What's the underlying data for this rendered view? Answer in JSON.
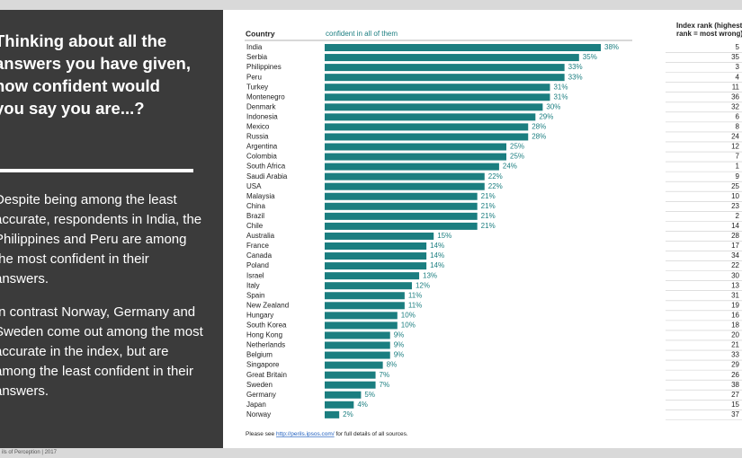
{
  "panel": {
    "question": "Thinking about all the answers you have given, how confident would you say you are...?",
    "paragraphs": [
      "Despite being among the least accurate, respondents in India, the Philippines and Peru are among the most confident in their answers.",
      "In contrast Norway, Germany and Sweden come out among the most accurate in the index, but are among the least confident in their answers."
    ]
  },
  "footer": "ils of Perception | 2017",
  "chart_data": {
    "type": "bar",
    "orientation": "horizontal",
    "category_header": "Country",
    "series_name": "confident in all of them",
    "color": "#1b7e80",
    "categories": [
      "India",
      "Serbia",
      "Philippines",
      "Peru",
      "Turkey",
      "Montenegro",
      "Denmark",
      "Indonesia",
      "Mexico",
      "Russia",
      "Argentina",
      "Colombia",
      "South Africa",
      "Saudi Arabia",
      "USA",
      "Malaysia",
      "China",
      "Brazil",
      "Chile",
      "Australia",
      "France",
      "Canada",
      "Poland",
      "Israel",
      "Italy",
      "Spain",
      "New Zealand",
      "Hungary",
      "South Korea",
      "Hong Kong",
      "Netherlands",
      "Belgium",
      "Singapore",
      "Great Britain",
      "Sweden",
      "Germany",
      "Japan",
      "Norway"
    ],
    "values": [
      38,
      35,
      33,
      33,
      31,
      31,
      30,
      29,
      28,
      28,
      25,
      25,
      24,
      22,
      22,
      21,
      21,
      21,
      21,
      15,
      14,
      14,
      14,
      13,
      12,
      11,
      11,
      10,
      10,
      9,
      9,
      9,
      8,
      7,
      7,
      5,
      4,
      2
    ],
    "value_labels": [
      "38%",
      "35%",
      "33%",
      "33%",
      "31%",
      "31%",
      "30%",
      "29%",
      "28%",
      "28%",
      "25%",
      "25%",
      "24%",
      "22%",
      "22%",
      "21%",
      "21%",
      "21%",
      "21%",
      "15%",
      "14%",
      "14%",
      "14%",
      "13%",
      "12%",
      "11%",
      "11%",
      "10%",
      "10%",
      "9%",
      "9%",
      "9%",
      "8%",
      "7%",
      "7%",
      "5%",
      "4%",
      "2%"
    ],
    "rank_header": [
      "Index rank (highest",
      "rank = most wrong)"
    ],
    "ranks": [
      5,
      35,
      3,
      4,
      11,
      36,
      32,
      6,
      8,
      24,
      12,
      7,
      1,
      9,
      25,
      10,
      23,
      2,
      14,
      28,
      17,
      34,
      22,
      30,
      13,
      31,
      19,
      16,
      18,
      20,
      21,
      33,
      29,
      26,
      38,
      27,
      15,
      37
    ],
    "note": {
      "prefix": "Please see ",
      "link": "http://perils.ipsos.com/",
      "suffix": " for full details of all sources."
    }
  }
}
